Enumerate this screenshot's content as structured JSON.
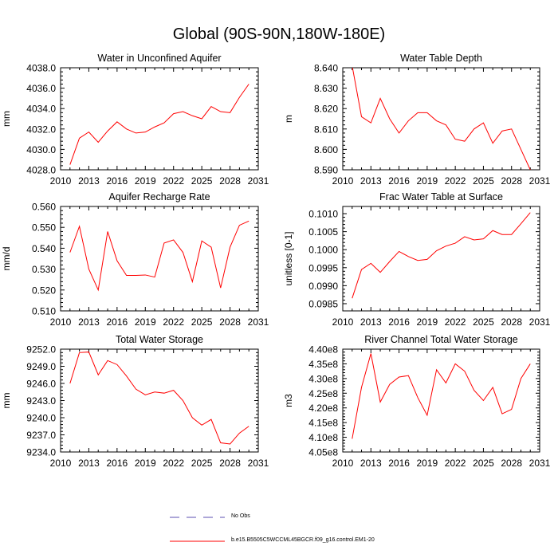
{
  "title": "Global (90S-90N,180W-180E)",
  "legend": {
    "obs_label": "No Obs",
    "obs_color": "#5b4fb0",
    "model_label": "b.e15.B5505C5WCCML45BGCR.f09_g16.control.EM1-20",
    "model_color": "#ff0000"
  },
  "chart_data": [
    {
      "type": "line",
      "title": "Water in Unconfined Aquifer",
      "xlabel": "",
      "ylabel": "mm",
      "xlim": [
        2010,
        2031
      ],
      "xticks": [
        2010,
        2013,
        2016,
        2019,
        2022,
        2025,
        2028,
        2031
      ],
      "ylim": [
        4028.0,
        4038.0
      ],
      "yticks": [
        "4028.0",
        "4030.0",
        "4032.0",
        "4034.0",
        "4036.0",
        "4038.0"
      ],
      "x": [
        2011,
        2012,
        2013,
        2014,
        2015,
        2016,
        2017,
        2018,
        2019,
        2020,
        2021,
        2022,
        2023,
        2024,
        2025,
        2026,
        2027,
        2028,
        2029,
        2030
      ],
      "values": [
        4028.5,
        4031.1,
        4031.7,
        4030.7,
        4031.8,
        4032.7,
        4032.0,
        4031.6,
        4031.7,
        4032.2,
        4032.6,
        4033.5,
        4033.7,
        4033.3,
        4033.0,
        4034.2,
        4033.7,
        4033.6,
        4035.1,
        4036.4
      ]
    },
    {
      "type": "line",
      "title": "Water Table Depth",
      "xlabel": "",
      "ylabel": "m",
      "xlim": [
        2010,
        2031
      ],
      "xticks": [
        2010,
        2013,
        2016,
        2019,
        2022,
        2025,
        2028,
        2031
      ],
      "ylim": [
        8.59,
        8.64
      ],
      "yticks": [
        "8.590",
        "8.600",
        "8.610",
        "8.620",
        "8.630",
        "8.640"
      ],
      "x": [
        2011,
        2012,
        2013,
        2014,
        2015,
        2016,
        2017,
        2018,
        2019,
        2020,
        2021,
        2022,
        2023,
        2024,
        2025,
        2026,
        2027,
        2028,
        2029,
        2030
      ],
      "values": [
        8.641,
        8.616,
        8.613,
        8.625,
        8.615,
        8.608,
        8.614,
        8.618,
        8.618,
        8.614,
        8.612,
        8.605,
        8.604,
        8.61,
        8.613,
        8.603,
        8.609,
        8.61,
        8.6,
        8.59
      ]
    },
    {
      "type": "line",
      "title": "Aquifer Recharge Rate",
      "xlabel": "",
      "ylabel": "mm/d",
      "xlim": [
        2010,
        2031
      ],
      "xticks": [
        2010,
        2013,
        2016,
        2019,
        2022,
        2025,
        2028,
        2031
      ],
      "ylim": [
        0.51,
        0.56
      ],
      "yticks": [
        "0.510",
        "0.520",
        "0.530",
        "0.540",
        "0.550",
        "0.560"
      ],
      "x": [
        2011,
        2012,
        2013,
        2014,
        2015,
        2016,
        2017,
        2018,
        2019,
        2020,
        2021,
        2022,
        2023,
        2024,
        2025,
        2026,
        2027,
        2028,
        2029,
        2030
      ],
      "values": [
        0.538,
        0.5505,
        0.53,
        0.52,
        0.548,
        0.534,
        0.527,
        0.527,
        0.5272,
        0.5262,
        0.5425,
        0.544,
        0.538,
        0.524,
        0.5435,
        0.5405,
        0.521,
        0.5405,
        0.551,
        0.553
      ]
    },
    {
      "type": "line",
      "title": "Frac Water Table at Surface",
      "xlabel": "",
      "ylabel": "unitless [0-1]",
      "xlim": [
        2010,
        2031
      ],
      "xticks": [
        2010,
        2013,
        2016,
        2019,
        2022,
        2025,
        2028,
        2031
      ],
      "ylim": [
        0.0983,
        0.1012
      ],
      "yticks": [
        "0.0985",
        "0.0990",
        "0.0995",
        "0.1000",
        "0.1005",
        "0.1010"
      ],
      "x": [
        2011,
        2012,
        2013,
        2014,
        2015,
        2016,
        2017,
        2018,
        2019,
        2020,
        2021,
        2022,
        2023,
        2024,
        2025,
        2026,
        2027,
        2028,
        2029,
        2030
      ],
      "values": [
        0.09865,
        0.09945,
        0.09962,
        0.09937,
        0.09967,
        0.09995,
        0.09981,
        0.0997,
        0.09973,
        0.09997,
        0.1001,
        0.10018,
        0.10036,
        0.10027,
        0.1003,
        0.10053,
        0.10042,
        0.10042,
        0.10072,
        0.10103
      ]
    },
    {
      "type": "line",
      "title": "Total Water Storage",
      "xlabel": "",
      "ylabel": "mm",
      "xlim": [
        2010,
        2031
      ],
      "xticks": [
        2010,
        2013,
        2016,
        2019,
        2022,
        2025,
        2028,
        2031
      ],
      "ylim": [
        9234.0,
        9252.0
      ],
      "yticks": [
        "9234.0",
        "9237.0",
        "9240.0",
        "9243.0",
        "9246.0",
        "9249.0",
        "9252.0"
      ],
      "x": [
        2011,
        2012,
        2013,
        2014,
        2015,
        2016,
        2017,
        2018,
        2019,
        2020,
        2021,
        2022,
        2023,
        2024,
        2025,
        2026,
        2027,
        2028,
        2029,
        2030
      ],
      "values": [
        9246.0,
        9251.4,
        9251.5,
        9247.5,
        9250.0,
        9249.3,
        9247.3,
        9245.0,
        9244.0,
        9244.5,
        9244.3,
        9244.8,
        9243.0,
        9240.0,
        9238.7,
        9239.7,
        9235.6,
        9235.4,
        9237.3,
        9238.5
      ]
    },
    {
      "type": "line",
      "title": "River Channel Total Water Storage",
      "xlabel": "",
      "ylabel": "m3",
      "xlim": [
        2010,
        2031
      ],
      "xticks": [
        2010,
        2013,
        2016,
        2019,
        2022,
        2025,
        2028,
        2031
      ],
      "ylim": [
        405000000.0,
        440000000.0
      ],
      "yticks": [
        "4.05e8",
        "4.10e8",
        "4.15e8",
        "4.20e8",
        "4.25e8",
        "4.30e8",
        "4.35e8",
        "4.40e8"
      ],
      "x": [
        2011,
        2012,
        2013,
        2014,
        2015,
        2016,
        2017,
        2018,
        2019,
        2020,
        2021,
        2022,
        2023,
        2024,
        2025,
        2026,
        2027,
        2028,
        2029,
        2030
      ],
      "values": [
        409500000.0,
        427000000.0,
        438500000.0,
        422000000.0,
        428000000.0,
        430500000.0,
        431000000.0,
        423500000.0,
        417500000.0,
        433000000.0,
        428500000.0,
        435000000.0,
        432500000.0,
        426000000.0,
        422500000.0,
        427000000.0,
        418000000.0,
        419500000.0,
        430000000.0,
        435000000.0
      ]
    }
  ]
}
